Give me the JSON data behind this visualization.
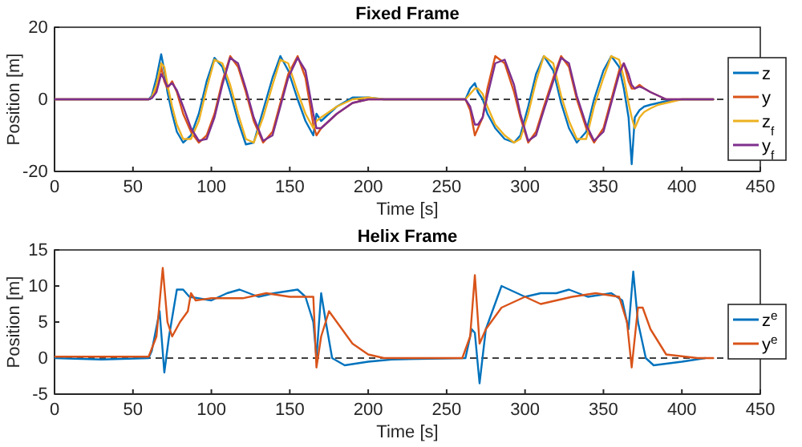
{
  "chart_data": [
    {
      "type": "line",
      "title": "Fixed Frame",
      "xlabel": "Time [s]",
      "ylabel": "Position [m]",
      "xlim": [
        0,
        450
      ],
      "xticks": [
        0,
        50,
        100,
        150,
        200,
        250,
        300,
        350,
        400,
        450
      ],
      "ylim": [
        -20,
        20
      ],
      "yticks": [
        -20,
        0,
        20
      ],
      "grid": false,
      "legend": "right",
      "line_style": "solid",
      "ref_lines": [
        {
          "axis": "y",
          "value": 0,
          "color": "#000000",
          "line_style": "dashed"
        }
      ],
      "x": [
        0,
        30,
        60,
        62,
        65,
        68,
        70,
        72,
        75,
        78,
        82,
        87,
        92,
        97,
        102,
        107,
        112,
        117,
        122,
        127,
        133,
        139,
        144,
        149,
        155,
        160,
        165,
        167,
        170,
        175,
        180,
        190,
        200,
        210,
        230,
        250,
        262,
        265,
        268,
        270,
        273,
        276,
        281,
        287,
        293,
        297,
        302,
        307,
        312,
        318,
        323,
        328,
        333,
        339,
        344,
        350,
        355,
        360,
        363,
        366,
        368,
        370,
        373,
        376,
        380,
        385,
        390,
        400,
        420
      ],
      "series": [
        {
          "name": "z",
          "color": "#0072bd",
          "values": [
            0,
            0,
            0,
            1,
            6,
            12.5,
            8,
            2,
            -4,
            -9,
            -12,
            -10,
            -4,
            5,
            11.5,
            9,
            2,
            -6,
            -12.5,
            -12,
            -3,
            6,
            12,
            8,
            0,
            -6,
            -10,
            -4,
            -6,
            -4,
            -2,
            0.5,
            0.5,
            0,
            0,
            0,
            0,
            3,
            4.5,
            2,
            0,
            -4,
            -8,
            -11,
            -12,
            -10,
            -2,
            7,
            12,
            8,
            -1,
            -8,
            -12,
            -9,
            0,
            8,
            12,
            9,
            3,
            -5,
            -18,
            -5,
            -3,
            -2,
            -1.5,
            -1,
            -0.5,
            0,
            0
          ]
        },
        {
          "name": "y",
          "color": "#d95319",
          "values": [
            0,
            0,
            0,
            0.5,
            3,
            9,
            5,
            3,
            5,
            2,
            -4,
            -9,
            -12,
            -10,
            -4,
            5,
            12,
            9,
            2,
            -6,
            -12,
            -9,
            -1,
            7,
            12,
            6,
            -7,
            -10,
            -8,
            -6,
            -4,
            -1,
            0,
            0,
            0,
            0,
            0,
            -3,
            -10,
            -8,
            -5,
            3,
            12,
            10,
            2,
            -5,
            -12,
            -9,
            -2,
            6,
            12,
            9,
            0,
            -8,
            -12,
            -8,
            0,
            8,
            10,
            5,
            3,
            3,
            4,
            3,
            2,
            1,
            0,
            0,
            0
          ]
        },
        {
          "name": "z$_{f}$",
          "color": "#edb120",
          "values": [
            0,
            0,
            0,
            0.5,
            4,
            10,
            9,
            4,
            -2,
            -7,
            -11,
            -11,
            -6,
            3,
            11,
            10,
            4,
            -4,
            -11,
            -12,
            -5,
            4,
            11,
            10,
            2,
            -4,
            -8,
            -6,
            -5,
            -3.5,
            -2,
            0,
            0.5,
            0,
            0,
            0,
            0,
            1.5,
            3,
            3,
            1.5,
            -2,
            -7,
            -10,
            -12,
            -11,
            -4,
            5,
            12,
            10,
            1,
            -6,
            -11,
            -11,
            -2,
            6,
            12,
            11,
            6,
            -1,
            -5,
            -8,
            -5,
            -3.5,
            -2.5,
            -1.5,
            -1,
            0,
            0
          ]
        },
        {
          "name": "y$_{f}$",
          "color": "#7e2f8e",
          "values": [
            0,
            0,
            0,
            0.3,
            2,
            7,
            5.5,
            3.5,
            4.5,
            2.5,
            -2,
            -8,
            -11.5,
            -11,
            -5,
            4,
            11.5,
            10,
            3,
            -5,
            -11.5,
            -10,
            -2,
            6,
            11.5,
            8,
            -4,
            -8,
            -8,
            -6,
            -4,
            -1,
            0,
            0,
            0,
            0,
            0,
            -2,
            -7,
            -7,
            -5,
            1,
            10,
            11,
            4,
            -4,
            -11.5,
            -10,
            -3,
            5,
            11.5,
            10,
            1,
            -7,
            -11.5,
            -9,
            -1,
            7,
            10,
            7,
            4,
            3,
            3.5,
            3,
            2,
            1,
            0,
            0,
            0
          ]
        }
      ]
    },
    {
      "type": "line",
      "title": "Helix Frame",
      "xlabel": "Time [s]",
      "ylabel": "Position [m]",
      "xlim": [
        0,
        450
      ],
      "xticks": [
        0,
        50,
        100,
        150,
        200,
        250,
        300,
        350,
        400,
        450
      ],
      "ylim": [
        -5,
        15
      ],
      "yticks": [
        -5,
        0,
        5,
        10,
        15
      ],
      "grid": false,
      "legend": "right",
      "line_style": "solid",
      "ref_lines": [
        {
          "axis": "y",
          "value": 0,
          "color": "#000000",
          "line_style": "dashed"
        }
      ],
      "series": [
        {
          "name": "z$^{e}$",
          "color": "#0072bd",
          "x": [
            0,
            30,
            60,
            62,
            67,
            70,
            73,
            78,
            82,
            86,
            100,
            110,
            118,
            130,
            140,
            155,
            160,
            165,
            167,
            170,
            173,
            177,
            185,
            200,
            215,
            262,
            266,
            268,
            271,
            275,
            285,
            290,
            300,
            310,
            320,
            328,
            340,
            355,
            362,
            366,
            369,
            372,
            377,
            382,
            400,
            415
          ],
          "values": [
            0,
            -0.2,
            0,
            1,
            6.5,
            -2,
            3,
            9.5,
            9.5,
            8.5,
            8,
            9,
            9.5,
            8.5,
            9,
            9.5,
            8.5,
            5,
            0,
            9,
            5,
            0,
            -1,
            -0.5,
            -0.2,
            0,
            4,
            3.5,
            -3.5,
            4,
            10,
            9.5,
            8.5,
            9,
            9,
            9.5,
            8.5,
            9,
            8,
            4,
            12,
            5,
            0,
            -1,
            -0.5,
            0
          ]
        },
        {
          "name": "y$^{e}$",
          "color": "#d95319",
          "x": [
            0,
            30,
            60,
            65,
            69,
            72,
            75,
            80,
            85,
            87,
            90,
            100,
            120,
            135,
            150,
            165,
            167,
            170,
            175,
            180,
            190,
            200,
            210,
            260,
            265,
            268,
            271,
            275,
            285,
            300,
            310,
            330,
            345,
            360,
            365,
            368,
            372,
            375,
            380,
            390,
            410,
            420
          ],
          "values": [
            0.2,
            0.2,
            0.2,
            3,
            12.5,
            5,
            3,
            5,
            6.5,
            9,
            8,
            8.3,
            8.3,
            9,
            8.5,
            8.5,
            -1.3,
            3,
            6.5,
            5,
            2,
            0.5,
            0,
            0,
            3,
            11.5,
            2,
            4,
            7,
            8.5,
            7.5,
            8.5,
            9,
            8.5,
            5,
            -1.3,
            7,
            7,
            4,
            0.5,
            0,
            0
          ]
        }
      ]
    }
  ]
}
